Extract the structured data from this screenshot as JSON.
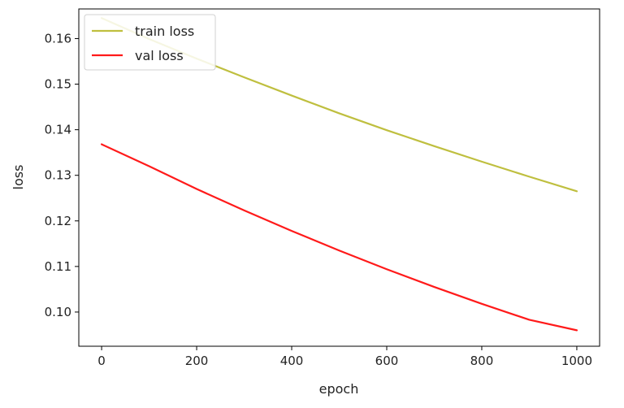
{
  "chart_data": {
    "type": "line",
    "title": "",
    "xlabel": "epoch",
    "ylabel": "loss",
    "xlim": [
      -48,
      1048
    ],
    "ylim": [
      0.0925,
      0.1665
    ],
    "xticks": [
      0,
      200,
      400,
      600,
      800,
      1000
    ],
    "xtick_labels": [
      "0",
      "200",
      "400",
      "600",
      "800",
      "1000"
    ],
    "yticks": [
      0.1,
      0.11,
      0.12,
      0.13,
      0.14,
      0.15,
      0.16
    ],
    "ytick_labels": [
      "0.10",
      "0.11",
      "0.12",
      "0.13",
      "0.14",
      "0.15",
      "0.16"
    ],
    "grid": false,
    "legend_position": "upper-left",
    "x": [
      0,
      100,
      200,
      300,
      400,
      500,
      600,
      700,
      800,
      900,
      1000
    ],
    "series": [
      {
        "name": "train loss",
        "color": "#bfbf3f",
        "values": [
          0.1645,
          0.1599,
          0.1556,
          0.1515,
          0.1475,
          0.1436,
          0.1399,
          0.1364,
          0.133,
          0.1297,
          0.1265
        ]
      },
      {
        "name": "val loss",
        "color": "#ff1a1a",
        "values": [
          0.1368,
          0.132,
          0.127,
          0.1223,
          0.1178,
          0.1135,
          0.1094,
          0.1055,
          0.1018,
          0.0983,
          0.096
        ]
      }
    ]
  }
}
